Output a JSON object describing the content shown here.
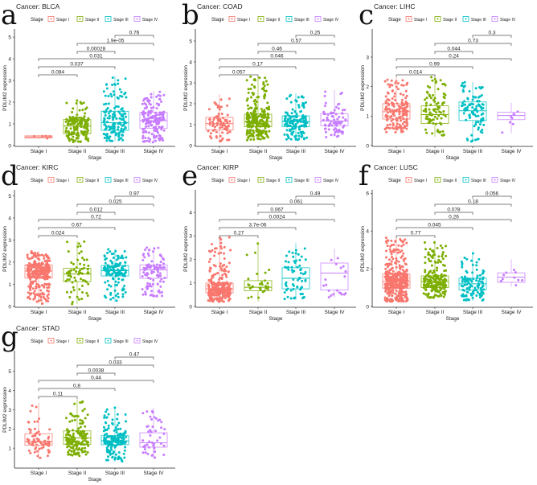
{
  "legend_title": "Stage",
  "categories": [
    "Stage I",
    "Stage II",
    "Stage III",
    "Stage IV"
  ],
  "colors": [
    "#F8766D",
    "#7CAE00",
    "#00BFC4",
    "#C77CFF"
  ],
  "xlabel": "Stage",
  "ylabel": "PDLIM2 expression",
  "comparison_pairs": [
    [
      "Stage I",
      "Stage II"
    ],
    [
      "Stage I",
      "Stage III"
    ],
    [
      "Stage I",
      "Stage IV"
    ],
    [
      "Stage II",
      "Stage III"
    ],
    [
      "Stage II",
      "Stage IV"
    ],
    [
      "Stage III",
      "Stage IV"
    ]
  ],
  "chart_data": [
    {
      "type": "box",
      "letter": "a",
      "title": "Cancer: BLCA",
      "ylim": [
        0,
        5.3
      ],
      "yticks": [
        0,
        1,
        2,
        3,
        4,
        5
      ],
      "boxes": [
        {
          "min": 0.3,
          "q1": 0.35,
          "median": 0.4,
          "q3": 0.45,
          "max": 0.5
        },
        {
          "min": 0.15,
          "q1": 0.55,
          "median": 0.9,
          "q3": 1.2,
          "max": 2.1
        },
        {
          "min": 0.2,
          "q1": 0.7,
          "median": 1.05,
          "q3": 1.58,
          "max": 3.2
        },
        {
          "min": 0.15,
          "q1": 0.8,
          "median": 1.15,
          "q3": 1.53,
          "max": 2.5
        }
      ],
      "pvalues": [
        "0.084",
        "0.037",
        "0.031",
        "0.00028",
        "1.9e-05",
        "0.76"
      ]
    },
    {
      "type": "box",
      "letter": "b",
      "title": "Cancer: COAD",
      "ylim": [
        0,
        5.5
      ],
      "yticks": [
        0,
        1,
        2,
        3,
        4,
        5
      ],
      "boxes": [
        {
          "min": 0.2,
          "q1": 0.75,
          "median": 1.05,
          "q3": 1.35,
          "max": 2.45
        },
        {
          "min": 0.25,
          "q1": 0.9,
          "median": 1.15,
          "q3": 1.5,
          "max": 3.3
        },
        {
          "min": 0.25,
          "q1": 0.9,
          "median": 1.15,
          "q3": 1.42,
          "max": 2.5
        },
        {
          "min": 0.4,
          "q1": 0.95,
          "median": 1.18,
          "q3": 1.53,
          "max": 2.65
        }
      ],
      "pvalues": [
        "0.057",
        "0.17",
        "0.046",
        "0.46",
        "0.57",
        "0.25"
      ]
    },
    {
      "type": "box",
      "letter": "c",
      "title": "Cancer: LIHC",
      "ylim": [
        0,
        3.9
      ],
      "yticks": [
        0,
        1,
        2,
        3
      ],
      "boxes": [
        {
          "min": 0.45,
          "q1": 0.9,
          "median": 1.15,
          "q3": 1.42,
          "max": 2.3
        },
        {
          "min": 0.3,
          "q1": 0.75,
          "median": 1.05,
          "q3": 1.35,
          "max": 2.35
        },
        {
          "min": 0.12,
          "q1": 0.85,
          "median": 1.18,
          "q3": 1.48,
          "max": 2.15
        },
        {
          "min": 0.42,
          "q1": 0.88,
          "median": 1.02,
          "q3": 1.13,
          "max": 1.45
        }
      ],
      "pvalues": [
        "0.014",
        "0.99",
        "0.24",
        "0.044",
        "0.73",
        "0.3"
      ]
    },
    {
      "type": "box",
      "letter": "d",
      "title": "Cancer: KIRC",
      "ylim": [
        0,
        5.2
      ],
      "yticks": [
        0,
        1,
        2,
        3,
        4,
        5
      ],
      "boxes": [
        {
          "min": 0.12,
          "q1": 1.28,
          "median": 1.6,
          "q3": 1.88,
          "max": 2.5
        },
        {
          "min": 0.1,
          "q1": 1.12,
          "median": 1.47,
          "q3": 1.73,
          "max": 2.95
        },
        {
          "min": 0.2,
          "q1": 1.38,
          "median": 1.62,
          "q3": 1.85,
          "max": 2.6
        },
        {
          "min": 0.45,
          "q1": 1.27,
          "median": 1.65,
          "q3": 1.88,
          "max": 2.7
        }
      ],
      "pvalues": [
        "0.024",
        "0.67",
        "0.72",
        "0.012",
        "0.025",
        "0.97"
      ]
    },
    {
      "type": "box",
      "letter": "e",
      "title": "Cancer: KIRP",
      "ylim": [
        0,
        4.9
      ],
      "yticks": [
        0,
        1,
        2,
        3,
        4
      ],
      "boxes": [
        {
          "min": 0.2,
          "q1": 0.58,
          "median": 0.75,
          "q3": 1.0,
          "max": 2.95
        },
        {
          "min": 0.2,
          "q1": 0.67,
          "median": 0.82,
          "q3": 1.1,
          "max": 2.7
        },
        {
          "min": 0.28,
          "q1": 0.75,
          "median": 1.2,
          "q3": 1.65,
          "max": 2.7
        },
        {
          "min": 0.38,
          "q1": 0.7,
          "median": 1.42,
          "q3": 1.85,
          "max": 2.45
        }
      ],
      "pvalues": [
        "0.27",
        "3.7e-06",
        "0.0024",
        "0.067",
        "0.061",
        "0.49"
      ]
    },
    {
      "type": "box",
      "letter": "f",
      "title": "Cancer: LUSC",
      "ylim": [
        0,
        6.1
      ],
      "yticks": [
        0,
        2,
        4,
        6
      ],
      "boxes": [
        {
          "min": 0.25,
          "q1": 0.97,
          "median": 1.32,
          "q3": 1.72,
          "max": 3.7
        },
        {
          "min": 0.45,
          "q1": 1.0,
          "median": 1.32,
          "q3": 1.62,
          "max": 3.5
        },
        {
          "min": 0.3,
          "q1": 0.88,
          "median": 1.2,
          "q3": 1.5,
          "max": 2.9
        },
        {
          "min": 1.05,
          "q1": 1.28,
          "median": 1.55,
          "q3": 1.78,
          "max": 2.5
        }
      ],
      "pvalues": [
        "0.77",
        "0.045",
        "0.26",
        "0.078",
        "0.18",
        "0.056"
      ]
    },
    {
      "type": "box",
      "letter": "g",
      "title": "Cancer: STAD",
      "ylim": [
        0,
        6
      ],
      "yticks": [
        1,
        2,
        3,
        4,
        5
      ],
      "boxes": [
        {
          "min": 0.45,
          "q1": 1.15,
          "median": 1.35,
          "q3": 1.75,
          "max": 3.35
        },
        {
          "min": 0.6,
          "q1": 1.2,
          "median": 1.53,
          "q3": 1.9,
          "max": 3.55
        },
        {
          "min": 0.3,
          "q1": 1.18,
          "median": 1.38,
          "q3": 1.65,
          "max": 3.15
        },
        {
          "min": 0.45,
          "q1": 1.05,
          "median": 1.28,
          "q3": 1.8,
          "max": 3.1
        }
      ],
      "pvalues": [
        "0.11",
        "0.8",
        "0.44",
        "0.0038",
        "0.033",
        "0.47"
      ]
    }
  ]
}
